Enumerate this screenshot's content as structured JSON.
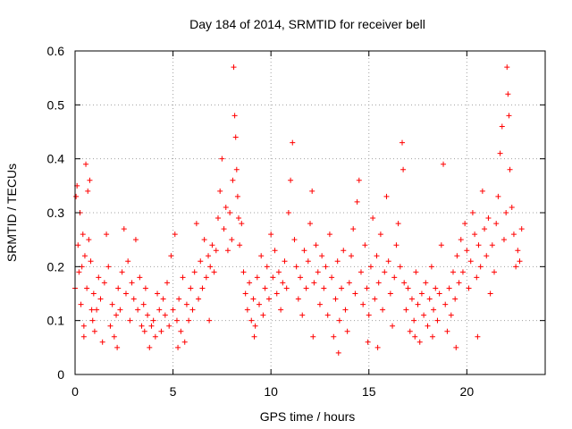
{
  "chart_data": {
    "type": "scatter",
    "title": "Day 184 of 2014, SRMTID for receiver bell",
    "xlabel": "GPS time / hours",
    "ylabel": "SRMTID / TECUs",
    "xlim": [
      0,
      24
    ],
    "ylim": [
      0,
      0.6
    ],
    "xticks": [
      0,
      5,
      10,
      15,
      20
    ],
    "yticks": [
      0,
      0.1,
      0.2,
      0.3,
      0.4,
      0.5,
      0.6
    ],
    "marker": "+",
    "color": "#ff0000",
    "series": [
      {
        "name": "SRMTID",
        "points": [
          [
            0.0,
            0.16
          ],
          [
            0.05,
            0.33
          ],
          [
            0.1,
            0.35
          ],
          [
            0.15,
            0.24
          ],
          [
            0.2,
            0.19
          ],
          [
            0.25,
            0.3
          ],
          [
            0.3,
            0.13
          ],
          [
            0.35,
            0.2
          ],
          [
            0.4,
            0.26
          ],
          [
            0.45,
            0.07
          ],
          [
            0.5,
            0.22
          ],
          [
            0.55,
            0.39
          ],
          [
            0.6,
            0.16
          ],
          [
            0.65,
            0.34
          ],
          [
            0.7,
            0.25
          ],
          [
            0.75,
            0.36
          ],
          [
            0.8,
            0.21
          ],
          [
            0.85,
            0.12
          ],
          [
            0.9,
            0.1
          ],
          [
            0.95,
            0.15
          ],
          [
            1.0,
            0.08
          ],
          [
            1.1,
            0.12
          ],
          [
            1.2,
            0.18
          ],
          [
            1.3,
            0.14
          ],
          [
            1.4,
            0.06
          ],
          [
            1.5,
            0.17
          ],
          [
            1.6,
            0.26
          ],
          [
            1.7,
            0.2
          ],
          [
            1.8,
            0.09
          ],
          [
            1.9,
            0.13
          ],
          [
            2.0,
            0.07
          ],
          [
            2.1,
            0.11
          ],
          [
            2.2,
            0.16
          ],
          [
            2.3,
            0.12
          ],
          [
            2.4,
            0.19
          ],
          [
            2.5,
            0.27
          ],
          [
            2.6,
            0.15
          ],
          [
            2.7,
            0.21
          ],
          [
            2.8,
            0.1
          ],
          [
            2.9,
            0.17
          ],
          [
            3.0,
            0.14
          ],
          [
            3.1,
            0.25
          ],
          [
            3.2,
            0.12
          ],
          [
            3.3,
            0.18
          ],
          [
            3.4,
            0.09
          ],
          [
            3.5,
            0.13
          ],
          [
            3.6,
            0.16
          ],
          [
            3.7,
            0.11
          ],
          [
            3.8,
            0.05
          ],
          [
            3.9,
            0.09
          ],
          [
            4.0,
            0.1
          ],
          [
            4.1,
            0.07
          ],
          [
            4.2,
            0.15
          ],
          [
            4.3,
            0.12
          ],
          [
            4.4,
            0.08
          ],
          [
            4.5,
            0.14
          ],
          [
            4.6,
            0.11
          ],
          [
            4.7,
            0.17
          ],
          [
            4.8,
            0.09
          ],
          [
            4.9,
            0.22
          ],
          [
            5.0,
            0.12
          ],
          [
            5.1,
            0.26
          ],
          [
            5.2,
            0.1
          ],
          [
            5.3,
            0.14
          ],
          [
            5.4,
            0.08
          ],
          [
            5.5,
            0.18
          ],
          [
            5.6,
            0.06
          ],
          [
            5.7,
            0.13
          ],
          [
            5.8,
            0.1
          ],
          [
            5.9,
            0.16
          ],
          [
            6.0,
            0.12
          ],
          [
            6.1,
            0.19
          ],
          [
            6.2,
            0.28
          ],
          [
            6.3,
            0.14
          ],
          [
            6.4,
            0.21
          ],
          [
            6.5,
            0.16
          ],
          [
            6.6,
            0.25
          ],
          [
            6.7,
            0.18
          ],
          [
            6.8,
            0.22
          ],
          [
            6.9,
            0.2
          ],
          [
            7.0,
            0.24
          ],
          [
            7.1,
            0.19
          ],
          [
            7.2,
            0.23
          ],
          [
            7.3,
            0.29
          ],
          [
            7.4,
            0.34
          ],
          [
            7.5,
            0.4
          ],
          [
            7.6,
            0.27
          ],
          [
            7.7,
            0.31
          ],
          [
            7.8,
            0.23
          ],
          [
            7.9,
            0.3
          ],
          [
            8.0,
            0.25
          ],
          [
            8.05,
            0.36
          ],
          [
            8.1,
            0.57
          ],
          [
            8.15,
            0.48
          ],
          [
            8.2,
            0.44
          ],
          [
            8.25,
            0.38
          ],
          [
            8.3,
            0.33
          ],
          [
            8.35,
            0.29
          ],
          [
            8.4,
            0.24
          ],
          [
            8.5,
            0.28
          ],
          [
            8.6,
            0.19
          ],
          [
            8.7,
            0.15
          ],
          [
            8.8,
            0.12
          ],
          [
            8.9,
            0.17
          ],
          [
            9.0,
            0.1
          ],
          [
            9.1,
            0.14
          ],
          [
            9.2,
            0.09
          ],
          [
            9.3,
            0.18
          ],
          [
            9.4,
            0.13
          ],
          [
            9.5,
            0.22
          ],
          [
            9.6,
            0.11
          ],
          [
            9.7,
            0.16
          ],
          [
            9.8,
            0.2
          ],
          [
            9.9,
            0.14
          ],
          [
            10.0,
            0.26
          ],
          [
            10.1,
            0.18
          ],
          [
            10.2,
            0.23
          ],
          [
            10.3,
            0.15
          ],
          [
            10.4,
            0.19
          ],
          [
            10.5,
            0.12
          ],
          [
            10.6,
            0.17
          ],
          [
            10.7,
            0.21
          ],
          [
            10.8,
            0.16
          ],
          [
            10.9,
            0.3
          ],
          [
            11.0,
            0.36
          ],
          [
            11.1,
            0.43
          ],
          [
            11.2,
            0.25
          ],
          [
            11.3,
            0.2
          ],
          [
            11.4,
            0.14
          ],
          [
            11.5,
            0.18
          ],
          [
            11.6,
            0.11
          ],
          [
            11.7,
            0.23
          ],
          [
            11.8,
            0.16
          ],
          [
            11.9,
            0.21
          ],
          [
            12.0,
            0.28
          ],
          [
            12.1,
            0.34
          ],
          [
            12.2,
            0.17
          ],
          [
            12.3,
            0.24
          ],
          [
            12.4,
            0.19
          ],
          [
            12.5,
            0.13
          ],
          [
            12.6,
            0.22
          ],
          [
            12.7,
            0.16
          ],
          [
            12.8,
            0.2
          ],
          [
            12.9,
            0.11
          ],
          [
            13.0,
            0.26
          ],
          [
            13.1,
            0.18
          ],
          [
            13.2,
            0.07
          ],
          [
            13.3,
            0.14
          ],
          [
            13.4,
            0.21
          ],
          [
            13.5,
            0.1
          ],
          [
            13.6,
            0.16
          ],
          [
            13.7,
            0.23
          ],
          [
            13.8,
            0.12
          ],
          [
            13.9,
            0.08
          ],
          [
            14.0,
            0.17
          ],
          [
            14.1,
            0.22
          ],
          [
            14.2,
            0.27
          ],
          [
            14.3,
            0.15
          ],
          [
            14.4,
            0.32
          ],
          [
            14.5,
            0.36
          ],
          [
            14.6,
            0.19
          ],
          [
            14.7,
            0.13
          ],
          [
            14.8,
            0.24
          ],
          [
            14.9,
            0.16
          ],
          [
            15.0,
            0.11
          ],
          [
            15.1,
            0.2
          ],
          [
            15.2,
            0.29
          ],
          [
            15.3,
            0.14
          ],
          [
            15.4,
            0.22
          ],
          [
            15.5,
            0.17
          ],
          [
            15.6,
            0.26
          ],
          [
            15.7,
            0.12
          ],
          [
            15.8,
            0.19
          ],
          [
            15.9,
            0.33
          ],
          [
            16.0,
            0.21
          ],
          [
            16.1,
            0.15
          ],
          [
            16.2,
            0.09
          ],
          [
            16.3,
            0.18
          ],
          [
            16.4,
            0.24
          ],
          [
            16.5,
            0.28
          ],
          [
            16.6,
            0.2
          ],
          [
            16.7,
            0.43
          ],
          [
            16.75,
            0.38
          ],
          [
            16.8,
            0.17
          ],
          [
            16.9,
            0.12
          ],
          [
            17.0,
            0.16
          ],
          [
            17.1,
            0.08
          ],
          [
            17.2,
            0.14
          ],
          [
            17.3,
            0.1
          ],
          [
            17.4,
            0.19
          ],
          [
            17.5,
            0.13
          ],
          [
            17.6,
            0.06
          ],
          [
            17.7,
            0.15
          ],
          [
            17.8,
            0.11
          ],
          [
            17.9,
            0.17
          ],
          [
            18.0,
            0.09
          ],
          [
            18.1,
            0.14
          ],
          [
            18.2,
            0.2
          ],
          [
            18.3,
            0.12
          ],
          [
            18.4,
            0.16
          ],
          [
            18.5,
            0.1
          ],
          [
            18.6,
            0.15
          ],
          [
            18.7,
            0.24
          ],
          [
            18.8,
            0.39
          ],
          [
            18.9,
            0.13
          ],
          [
            19.0,
            0.08
          ],
          [
            19.1,
            0.16
          ],
          [
            19.2,
            0.11
          ],
          [
            19.3,
            0.19
          ],
          [
            19.4,
            0.14
          ],
          [
            19.5,
            0.22
          ],
          [
            19.6,
            0.17
          ],
          [
            19.7,
            0.25
          ],
          [
            19.8,
            0.19
          ],
          [
            19.9,
            0.28
          ],
          [
            20.0,
            0.23
          ],
          [
            20.1,
            0.16
          ],
          [
            20.2,
            0.21
          ],
          [
            20.3,
            0.3
          ],
          [
            20.4,
            0.26
          ],
          [
            20.5,
            0.18
          ],
          [
            20.6,
            0.24
          ],
          [
            20.7,
            0.2
          ],
          [
            20.8,
            0.34
          ],
          [
            20.9,
            0.27
          ],
          [
            21.0,
            0.22
          ],
          [
            21.1,
            0.29
          ],
          [
            21.2,
            0.15
          ],
          [
            21.3,
            0.24
          ],
          [
            21.4,
            0.19
          ],
          [
            21.5,
            0.28
          ],
          [
            21.6,
            0.33
          ],
          [
            21.7,
            0.41
          ],
          [
            21.8,
            0.46
          ],
          [
            21.9,
            0.25
          ],
          [
            22.0,
            0.3
          ],
          [
            22.05,
            0.57
          ],
          [
            22.1,
            0.52
          ],
          [
            22.15,
            0.48
          ],
          [
            22.2,
            0.38
          ],
          [
            22.3,
            0.31
          ],
          [
            22.4,
            0.26
          ],
          [
            22.5,
            0.2
          ],
          [
            22.6,
            0.23
          ],
          [
            22.7,
            0.21
          ],
          [
            22.8,
            0.27
          ],
          [
            6.85,
            0.1
          ],
          [
            5.25,
            0.05
          ],
          [
            3.55,
            0.08
          ],
          [
            12.15,
            0.07
          ],
          [
            13.45,
            0.04
          ],
          [
            14.95,
            0.06
          ],
          [
            19.45,
            0.05
          ],
          [
            18.25,
            0.07
          ],
          [
            0.45,
            0.09
          ],
          [
            2.15,
            0.05
          ],
          [
            9.15,
            0.07
          ],
          [
            15.45,
            0.05
          ],
          [
            17.35,
            0.07
          ],
          [
            20.55,
            0.07
          ]
        ]
      }
    ]
  }
}
